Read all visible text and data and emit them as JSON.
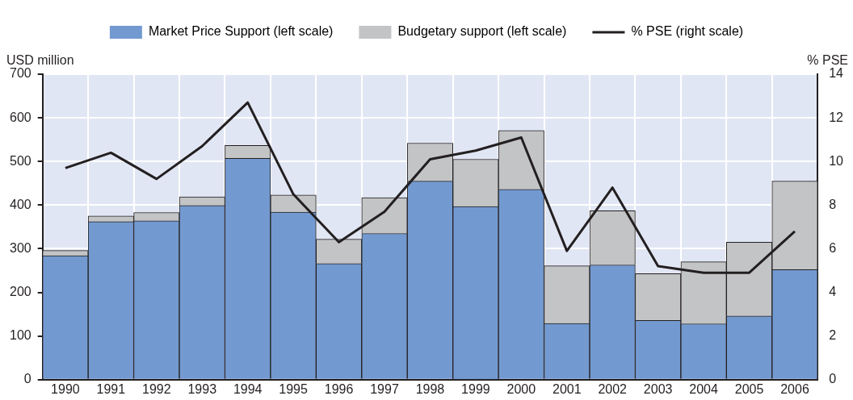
{
  "chart_data": {
    "type": "bar",
    "stacked": true,
    "ylabel": "USD million",
    "y2label": "% PSE",
    "categories": [
      "1990",
      "1991",
      "1992",
      "1993",
      "1994",
      "1995",
      "1996",
      "1997",
      "1998",
      "1999",
      "2000",
      "2001",
      "2002",
      "2003",
      "2004",
      "2005",
      "2006"
    ],
    "series": [
      {
        "name": "Market Price Support (left scale)",
        "color": "#739ad0",
        "values": [
          284,
          362,
          364,
          399,
          507,
          384,
          266,
          335,
          455,
          397,
          436,
          129,
          263,
          136,
          128,
          146,
          252
        ]
      },
      {
        "name": "Budgetary support (left scale)",
        "color": "#c3c4c6",
        "values": [
          12,
          13,
          19,
          20,
          30,
          39,
          56,
          82,
          87,
          108,
          135,
          132,
          124,
          107,
          142,
          169,
          203
        ]
      },
      {
        "name": "% PSE (right scale)",
        "type": "line",
        "axis": "y2",
        "color": "#231f20",
        "values": [
          9.7,
          10.4,
          9.2,
          10.7,
          12.7,
          8.5,
          6.3,
          7.7,
          10.1,
          10.5,
          11.1,
          5.9,
          8.8,
          5.2,
          4.9,
          4.9,
          6.8
        ]
      }
    ],
    "ylim": [
      0,
      700
    ],
    "yticks": [
      0,
      100,
      200,
      300,
      400,
      500,
      600,
      700
    ],
    "y2lim": [
      0,
      14
    ],
    "y2ticks": [
      0,
      2,
      4,
      6,
      8,
      10,
      12,
      14
    ],
    "grid": true,
    "legend": "top",
    "marker": "none",
    "line_style": "solid"
  }
}
